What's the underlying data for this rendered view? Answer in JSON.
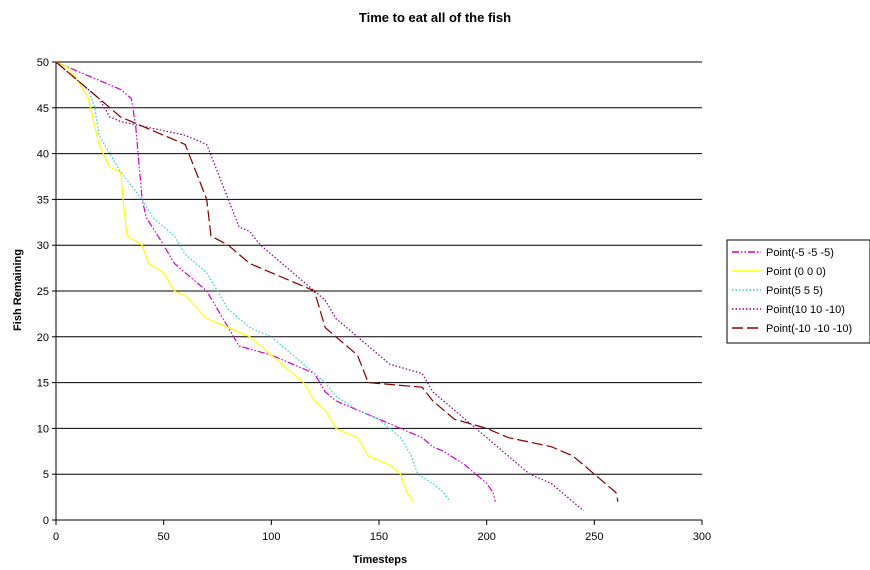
{
  "chart_data": {
    "type": "line",
    "title": "Time to eat all of the fish",
    "xlabel": "Timesteps",
    "ylabel": "Fish Remaining",
    "xlim": [
      0,
      300
    ],
    "ylim": [
      0,
      50
    ],
    "xticks": [
      0,
      50,
      100,
      150,
      200,
      250,
      300
    ],
    "yticks": [
      0,
      5,
      10,
      15,
      20,
      25,
      30,
      35,
      40,
      45,
      50
    ],
    "grid": "horizontal",
    "legend_position": "right",
    "series": [
      {
        "name": "Point(-5 -5 -5)",
        "color": "#cc00cc",
        "dash": "dash-dot-dot",
        "points": [
          [
            0,
            50
          ],
          [
            5,
            49.5
          ],
          [
            10,
            49
          ],
          [
            20,
            48
          ],
          [
            30,
            47
          ],
          [
            35,
            46
          ],
          [
            37,
            43
          ],
          [
            40,
            35
          ],
          [
            42,
            33
          ],
          [
            50,
            30
          ],
          [
            55,
            28
          ],
          [
            60,
            27
          ],
          [
            70,
            25
          ],
          [
            75,
            23
          ],
          [
            80,
            21
          ],
          [
            85,
            19
          ],
          [
            100,
            18
          ],
          [
            110,
            17
          ],
          [
            120,
            16
          ],
          [
            125,
            14
          ],
          [
            130,
            13
          ],
          [
            140,
            12
          ],
          [
            150,
            11
          ],
          [
            160,
            10
          ],
          [
            170,
            9
          ],
          [
            175,
            8
          ],
          [
            180,
            7.5
          ],
          [
            190,
            6
          ],
          [
            195,
            5
          ],
          [
            200,
            4
          ],
          [
            203,
            3
          ],
          [
            204,
            2
          ]
        ]
      },
      {
        "name": "Point (0 0 0)",
        "color": "#ffff00",
        "dash": "solid",
        "points": [
          [
            0,
            50
          ],
          [
            5,
            49.5
          ],
          [
            10,
            48
          ],
          [
            15,
            46
          ],
          [
            20,
            41
          ],
          [
            25,
            38.5
          ],
          [
            30,
            38
          ],
          [
            32,
            33
          ],
          [
            33,
            31
          ],
          [
            40,
            30
          ],
          [
            43,
            28
          ],
          [
            50,
            27
          ],
          [
            55,
            25
          ],
          [
            60,
            24.5
          ],
          [
            70,
            22
          ],
          [
            80,
            21
          ],
          [
            90,
            20
          ],
          [
            100,
            18
          ],
          [
            110,
            16
          ],
          [
            115,
            15
          ],
          [
            120,
            13
          ],
          [
            125,
            12
          ],
          [
            130,
            10
          ],
          [
            140,
            9
          ],
          [
            145,
            7
          ],
          [
            150,
            6.5
          ],
          [
            155,
            6
          ],
          [
            160,
            5
          ],
          [
            163,
            3
          ],
          [
            166,
            2
          ]
        ]
      },
      {
        "name": "Point(5 5 5)",
        "color": "#33cccc",
        "dash": "dotted",
        "points": [
          [
            0,
            50
          ],
          [
            10,
            48
          ],
          [
            15,
            47
          ],
          [
            18,
            45
          ],
          [
            20,
            42
          ],
          [
            25,
            40
          ],
          [
            30,
            38
          ],
          [
            40,
            35
          ],
          [
            45,
            33
          ],
          [
            50,
            32
          ],
          [
            55,
            31
          ],
          [
            60,
            29
          ],
          [
            70,
            27
          ],
          [
            75,
            25
          ],
          [
            80,
            23
          ],
          [
            85,
            22
          ],
          [
            90,
            21
          ],
          [
            100,
            20
          ],
          [
            105,
            19
          ],
          [
            110,
            18
          ],
          [
            120,
            16
          ],
          [
            125,
            15
          ],
          [
            130,
            13.5
          ],
          [
            140,
            12
          ],
          [
            150,
            11
          ],
          [
            155,
            10
          ],
          [
            160,
            9
          ],
          [
            165,
            7
          ],
          [
            168,
            5
          ],
          [
            175,
            4
          ],
          [
            180,
            3
          ],
          [
            183,
            2
          ]
        ]
      },
      {
        "name": "Point(10 10 -10)",
        "color": "#800080",
        "dash": "dotted",
        "points": [
          [
            0,
            50
          ],
          [
            10,
            48
          ],
          [
            20,
            46
          ],
          [
            25,
            44
          ],
          [
            30,
            43.5
          ],
          [
            40,
            43
          ],
          [
            50,
            42.5
          ],
          [
            60,
            42
          ],
          [
            70,
            41
          ],
          [
            75,
            38
          ],
          [
            80,
            35
          ],
          [
            85,
            32
          ],
          [
            90,
            31.5
          ],
          [
            95,
            30
          ],
          [
            100,
            29
          ],
          [
            105,
            28
          ],
          [
            115,
            26
          ],
          [
            120,
            25
          ],
          [
            125,
            24
          ],
          [
            130,
            22
          ],
          [
            140,
            20
          ],
          [
            150,
            18
          ],
          [
            155,
            17
          ],
          [
            170,
            16
          ],
          [
            175,
            14
          ],
          [
            180,
            13
          ],
          [
            185,
            12
          ],
          [
            190,
            11
          ],
          [
            195,
            10
          ],
          [
            200,
            9
          ],
          [
            210,
            7
          ],
          [
            220,
            5
          ],
          [
            230,
            4
          ],
          [
            240,
            2
          ],
          [
            245,
            1
          ]
        ]
      },
      {
        "name": "Point(-10 -10 -10)",
        "color": "#800000",
        "dash": "long-dash",
        "points": [
          [
            0,
            50
          ],
          [
            10,
            48
          ],
          [
            20,
            46
          ],
          [
            30,
            44
          ],
          [
            40,
            43
          ],
          [
            50,
            42
          ],
          [
            60,
            41
          ],
          [
            65,
            38
          ],
          [
            70,
            35
          ],
          [
            72,
            31
          ],
          [
            80,
            30
          ],
          [
            85,
            29
          ],
          [
            90,
            28
          ],
          [
            100,
            27
          ],
          [
            110,
            26
          ],
          [
            120,
            25
          ],
          [
            125,
            21
          ],
          [
            130,
            20
          ],
          [
            140,
            18
          ],
          [
            145,
            15
          ],
          [
            170,
            14.5
          ],
          [
            175,
            13
          ],
          [
            180,
            12
          ],
          [
            185,
            11
          ],
          [
            200,
            10
          ],
          [
            210,
            9
          ],
          [
            230,
            8
          ],
          [
            240,
            7
          ],
          [
            245,
            6
          ],
          [
            250,
            5
          ],
          [
            260,
            3
          ],
          [
            261,
            2
          ]
        ]
      }
    ]
  }
}
